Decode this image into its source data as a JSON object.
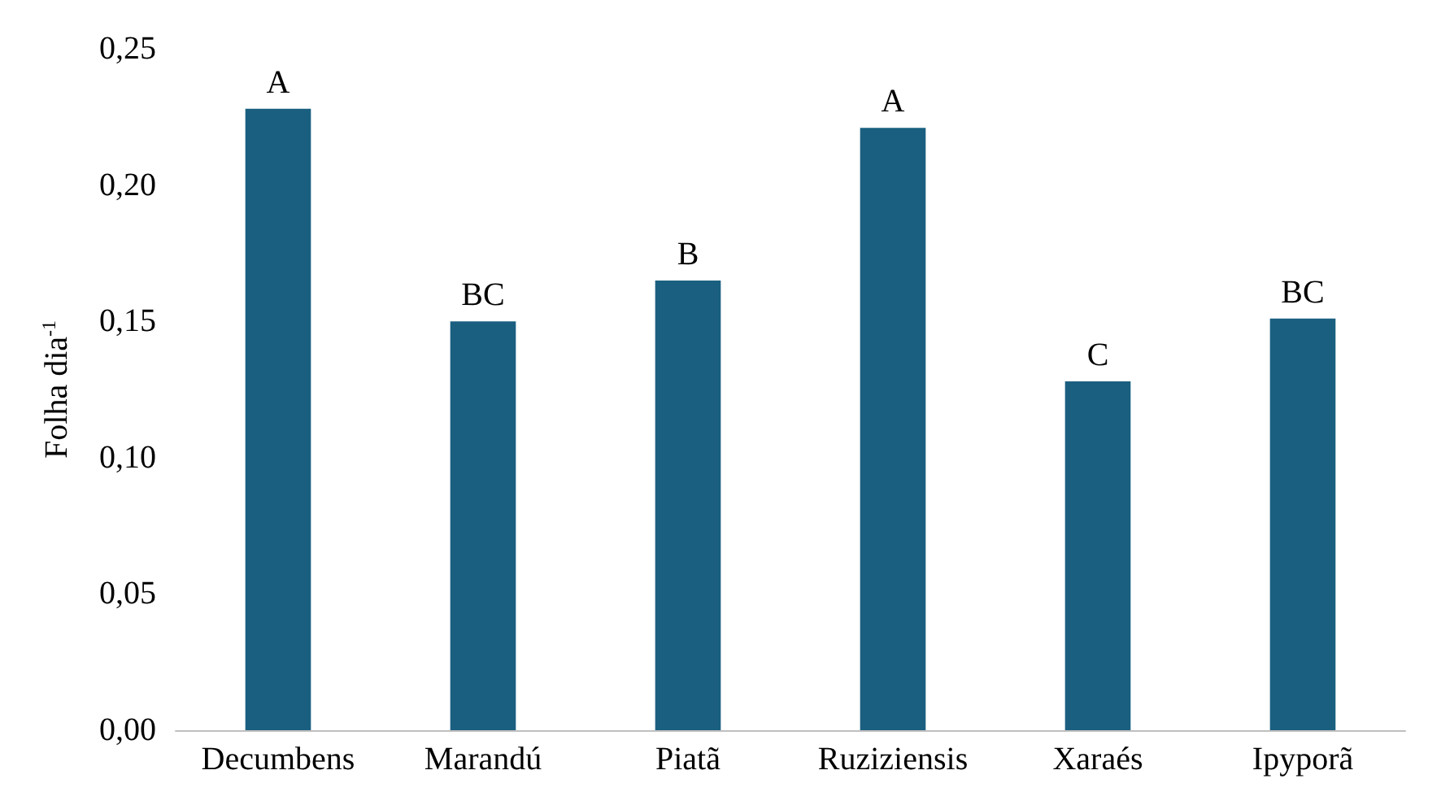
{
  "chart_data": {
    "type": "bar",
    "ylabel": "Folha dia$^{-1}$",
    "categories": [
      "Decumbens",
      "Marandú",
      "Piatã",
      "Ruziziensis",
      "Xaraés",
      "Ipyporã"
    ],
    "values": [
      0.228,
      0.15,
      0.165,
      0.221,
      0.128,
      0.151
    ],
    "color": "#1a5f80",
    "ylim": [
      0,
      0.25
    ],
    "yticks": [
      {
        "value": 0,
        "label": "0,00"
      },
      {
        "value": 0.05,
        "label": "0,05"
      },
      {
        "value": 0.1,
        "label": "0,10"
      },
      {
        "value": 0.15,
        "label": "0,15"
      },
      {
        "value": 0.2,
        "label": "0,20"
      },
      {
        "value": 0.25,
        "label": "0,25"
      }
    ],
    "annotations": [
      {
        "text": "A",
        "x": "Decumbens",
        "y": 0.228
      },
      {
        "text": "BC",
        "x": "Marandú",
        "y": 0.15
      },
      {
        "text": "B",
        "x": "Piatã",
        "y": 0.165
      },
      {
        "text": "A",
        "x": "Ruziziensis",
        "y": 0.221
      },
      {
        "text": "C",
        "x": "Xaraés",
        "y": 0.128
      },
      {
        "text": "BC",
        "x": "Ipyporã",
        "y": 0.151
      }
    ]
  }
}
